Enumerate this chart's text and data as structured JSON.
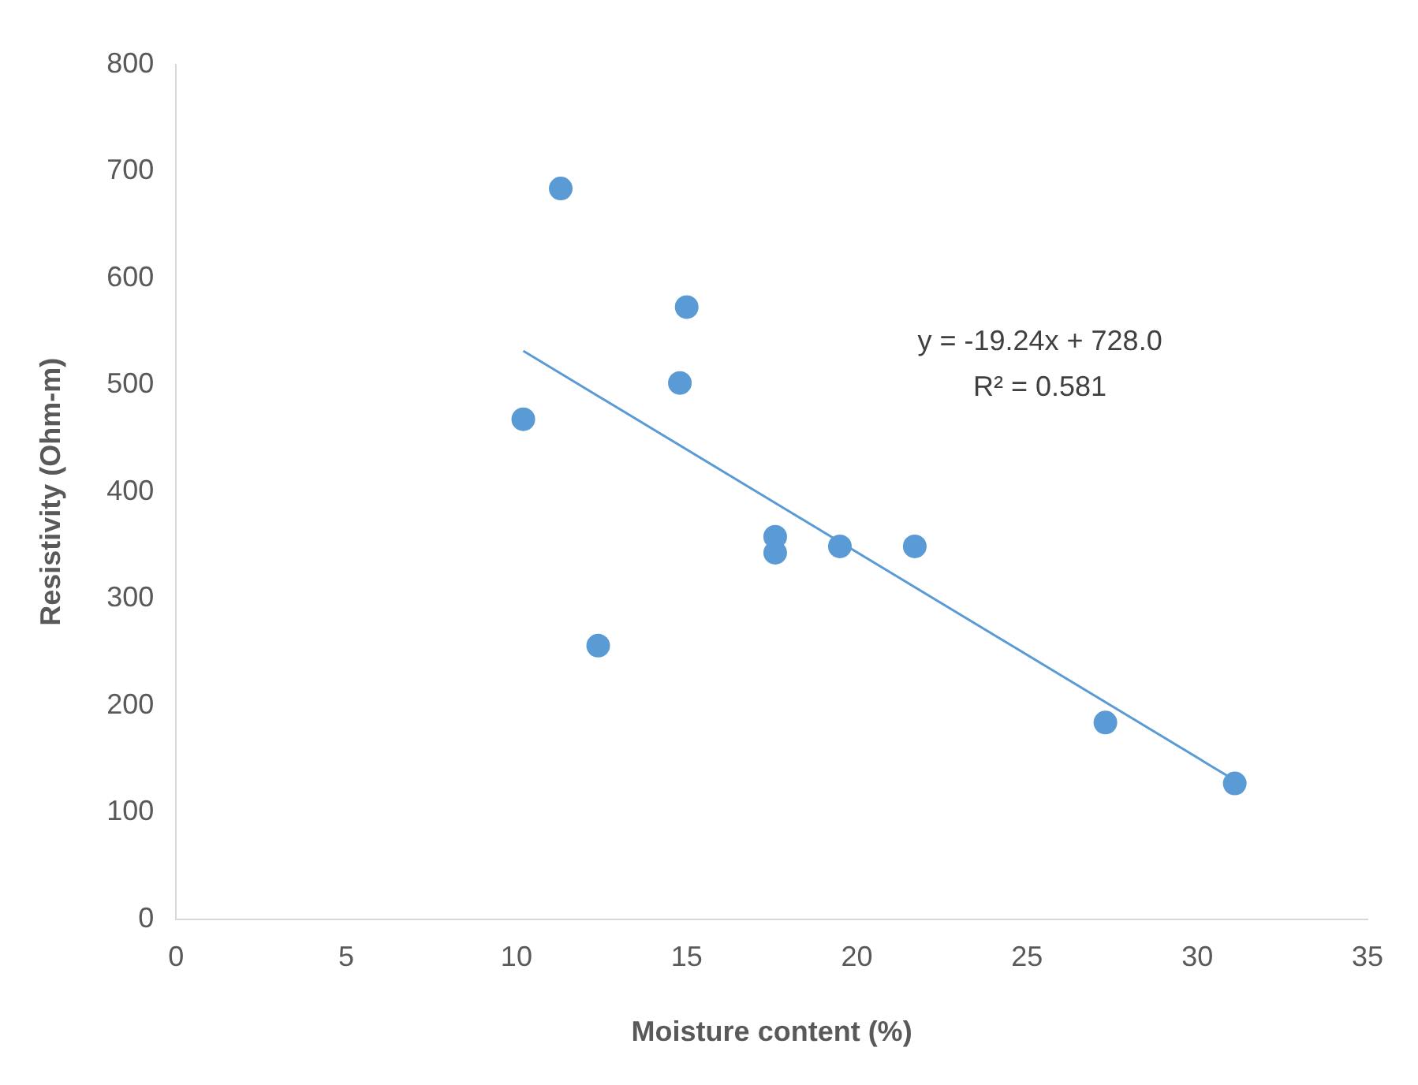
{
  "chart_data": {
    "type": "scatter",
    "xlabel": "Moisture content (%)",
    "ylabel": "Resistivity (Ohm-m)",
    "xlim": [
      0,
      35
    ],
    "xticks": [
      0,
      5,
      10,
      15,
      20,
      25,
      30,
      35
    ],
    "ylim": [
      0,
      800
    ],
    "yticks": [
      0,
      100,
      200,
      300,
      400,
      500,
      600,
      700,
      800
    ],
    "grid": false,
    "legend": false,
    "marker": "circle",
    "annotations": [
      "y = -19.24x + 728.0",
      "R² = 0.581"
    ],
    "series": [
      {
        "type": "scatter",
        "color": "#5b9bd5",
        "x": [
          11.3,
          15.0,
          14.8,
          10.2,
          17.6,
          17.6,
          19.5,
          21.7,
          12.4,
          27.3,
          31.1
        ],
        "values": [
          684,
          573,
          502,
          468,
          358,
          343,
          349,
          349,
          256,
          184,
          127
        ]
      },
      {
        "type": "line",
        "color": "#5b9bd5",
        "marker": "none",
        "line_style": "solid",
        "x": [
          10.2,
          31.1
        ],
        "values": [
          532,
          130
        ]
      }
    ]
  }
}
